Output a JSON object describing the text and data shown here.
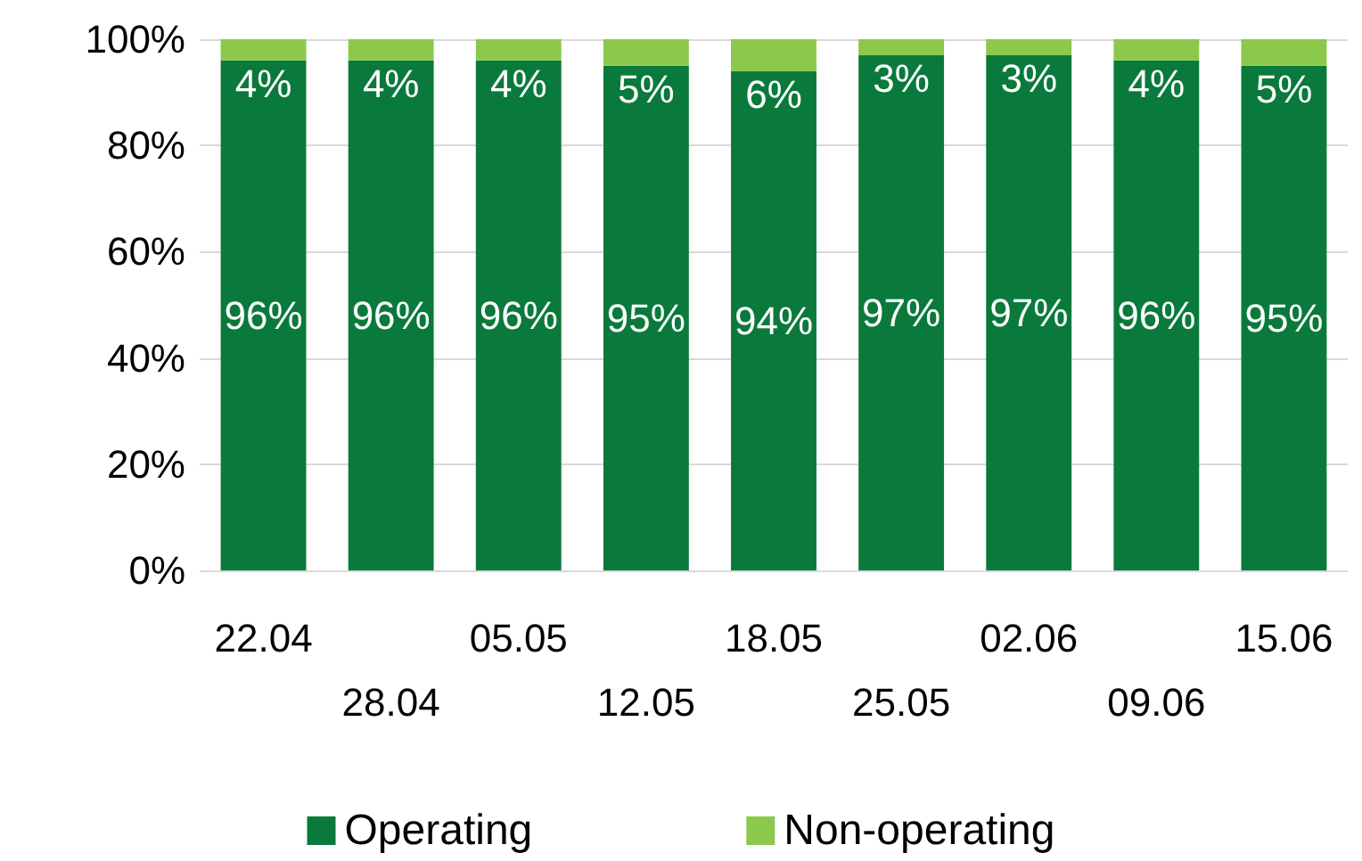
{
  "chart_data": {
    "type": "bar",
    "stacked": true,
    "categories": [
      "22.04",
      "28.04",
      "05.05",
      "12.05",
      "18.05",
      "25.05",
      "02.06",
      "09.06",
      "15.06"
    ],
    "series": [
      {
        "name": "Operating",
        "color": "#0a7a3c",
        "values": [
          96,
          96,
          96,
          95,
          94,
          97,
          97,
          96,
          95
        ],
        "value_labels": [
          "96%",
          "96%",
          "96%",
          "95%",
          "94%",
          "97%",
          "97%",
          "96%",
          "95%"
        ]
      },
      {
        "name": "Non-operating",
        "color": "#8cc84b",
        "values": [
          4,
          4,
          4,
          5,
          6,
          3,
          3,
          4,
          5
        ],
        "value_labels": [
          "4%",
          "4%",
          "4%",
          "5%",
          "6%",
          "3%",
          "3%",
          "4%",
          "5%"
        ]
      }
    ],
    "ylim": [
      0,
      100
    ],
    "yticks": [
      {
        "value": 0,
        "label": "0%"
      },
      {
        "value": 20,
        "label": "20%"
      },
      {
        "value": 40,
        "label": "40%"
      },
      {
        "value": 60,
        "label": "60%"
      },
      {
        "value": 80,
        "label": "80%"
      },
      {
        "value": 100,
        "label": "100%"
      }
    ],
    "grid": "y",
    "legend": "bottom"
  }
}
